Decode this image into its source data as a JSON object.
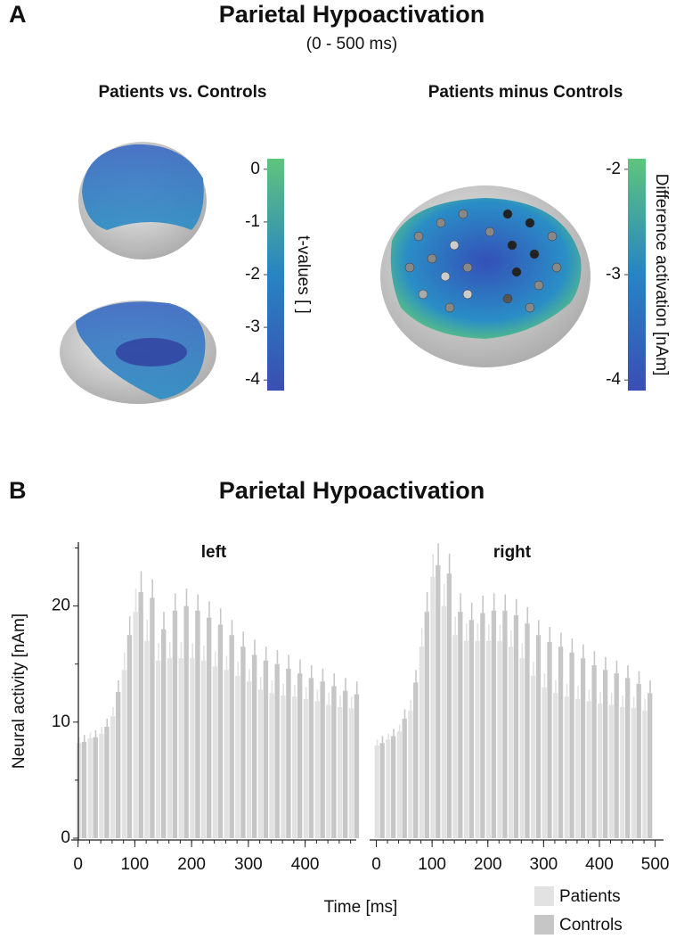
{
  "figure": {
    "panel_a": {
      "label": "A",
      "title": "Parietal Hypoactivation",
      "subtitle": "(0 - 500 ms)",
      "left_heading": "Patients vs. Controls",
      "right_heading": "Patients minus Controls"
    },
    "panel_b": {
      "label": "B",
      "title": "Parietal Hypoactivation",
      "ylabel": "Neural activity [nAm]",
      "xlabel": "Time [ms]"
    }
  },
  "chart_data": [
    {
      "type": "colorbar",
      "label": "t-values [ ]",
      "lim": [
        -4.2,
        0.2
      ],
      "ticks": [
        0,
        -1,
        -2,
        -3,
        -4
      ],
      "colors": [
        "#3a4eb3",
        "#2784c4",
        "#5fc47c"
      ]
    },
    {
      "type": "colorbar",
      "label": "Difference activation [nAm]",
      "lim": [
        -4.1,
        -1.9
      ],
      "ticks": [
        -2,
        -3,
        -4
      ],
      "colors": [
        "#3a4eb3",
        "#2784c4",
        "#5fc47c"
      ]
    },
    {
      "type": "bar",
      "title": "left",
      "x": [
        0,
        20,
        40,
        60,
        80,
        100,
        120,
        140,
        160,
        180,
        200,
        220,
        240,
        260,
        280,
        300,
        320,
        340,
        360,
        380,
        400,
        420,
        440,
        460,
        480
      ],
      "series": [
        {
          "name": "Patients",
          "color": "#e2e2e2",
          "values": [
            8.2,
            8.6,
            9.0,
            10.5,
            14.5,
            19.5,
            17.0,
            15.3,
            15.5,
            15.5,
            15.5,
            15.3,
            14.8,
            14.5,
            14.0,
            13.5,
            12.8,
            12.5,
            12.3,
            12.2,
            12.0,
            11.8,
            11.5,
            11.3,
            11.2
          ],
          "errors": [
            0.5,
            0.5,
            0.6,
            0.8,
            1.5,
            2.0,
            1.8,
            1.5,
            1.4,
            1.4,
            1.3,
            1.3,
            1.3,
            1.2,
            1.2,
            1.1,
            1.1,
            1.1,
            1.0,
            1.0,
            1.0,
            1.0,
            1.0,
            1.0,
            1.0
          ]
        },
        {
          "name": "Controls",
          "color": "#c6c6c6",
          "values": [
            8.3,
            8.7,
            9.6,
            12.6,
            17.5,
            21.2,
            20.7,
            18.0,
            19.6,
            20.0,
            19.6,
            19.0,
            18.4,
            17.5,
            16.5,
            15.8,
            15.3,
            15.0,
            14.6,
            14.2,
            13.8,
            13.5,
            13.1,
            12.7,
            12.4
          ],
          "errors": [
            0.6,
            0.6,
            0.7,
            1.0,
            1.6,
            1.8,
            1.6,
            1.5,
            1.5,
            1.5,
            1.4,
            1.4,
            1.4,
            1.3,
            1.3,
            1.3,
            1.2,
            1.2,
            1.2,
            1.2,
            1.1,
            1.1,
            1.1,
            1.1,
            1.1
          ]
        }
      ],
      "xlim": [
        -12,
        490
      ],
      "xticks": [
        0,
        100,
        200,
        300,
        400
      ],
      "ylim": [
        0,
        25.5
      ],
      "yticks": [
        0,
        10,
        20
      ],
      "yminor": [
        5,
        15,
        25
      ]
    },
    {
      "type": "bar",
      "title": "right",
      "x": [
        0,
        20,
        40,
        60,
        80,
        100,
        120,
        140,
        160,
        180,
        200,
        220,
        240,
        260,
        280,
        300,
        320,
        340,
        360,
        380,
        400,
        420,
        440,
        460,
        480
      ],
      "series": [
        {
          "name": "Patients",
          "color": "#e2e2e2",
          "values": [
            8.0,
            8.5,
            9.2,
            11.0,
            16.5,
            22.5,
            20.0,
            17.5,
            17.0,
            17.0,
            17.0,
            17.0,
            16.5,
            15.5,
            14.0,
            13.0,
            12.5,
            12.2,
            12.0,
            11.8,
            11.6,
            11.5,
            11.3,
            11.2,
            11.0
          ],
          "errors": [
            0.5,
            0.5,
            0.6,
            0.9,
            1.6,
            2.0,
            1.9,
            1.6,
            1.5,
            1.5,
            1.4,
            1.4,
            1.4,
            1.3,
            1.2,
            1.2,
            1.1,
            1.1,
            1.1,
            1.0,
            1.0,
            1.0,
            1.0,
            1.0,
            1.0
          ]
        },
        {
          "name": "Controls",
          "color": "#c6c6c6",
          "values": [
            8.2,
            8.8,
            10.3,
            13.4,
            19.5,
            23.5,
            22.8,
            19.5,
            18.8,
            19.4,
            19.6,
            19.6,
            19.2,
            18.5,
            17.5,
            16.9,
            16.5,
            16.0,
            15.5,
            14.9,
            14.5,
            14.2,
            13.8,
            13.3,
            12.5
          ],
          "errors": [
            0.6,
            0.6,
            0.8,
            1.1,
            1.7,
            1.9,
            1.7,
            1.6,
            1.5,
            1.5,
            1.5,
            1.4,
            1.4,
            1.4,
            1.3,
            1.3,
            1.2,
            1.2,
            1.2,
            1.2,
            1.1,
            1.1,
            1.1,
            1.1,
            1.1
          ]
        }
      ],
      "xlim": [
        -12,
        515
      ],
      "xticks": [
        0,
        100,
        200,
        300,
        400,
        500
      ],
      "ylim": [
        0,
        25.5
      ],
      "yticks": [
        0,
        10,
        20
      ],
      "yminor": [
        5,
        15,
        25
      ],
      "legend": "bottom right"
    }
  ]
}
